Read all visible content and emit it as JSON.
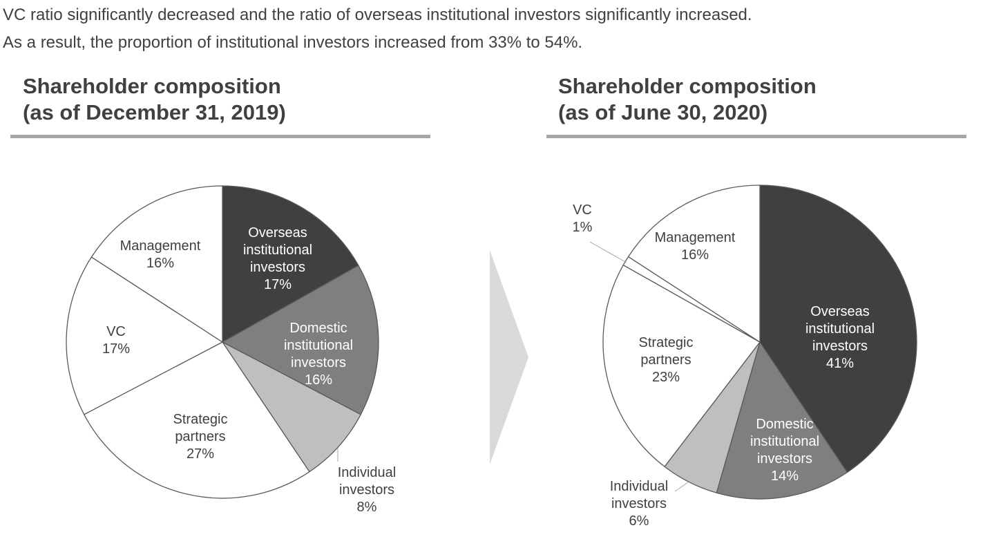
{
  "intro": {
    "line1": "VC ratio significantly decreased and the ratio of overseas institutional investors significantly increased.",
    "line2": "As a result, the proportion of institutional investors increased from 33% to 54%."
  },
  "colors": {
    "overseas": "#404040",
    "domestic": "#7f7f7f",
    "individual": "#bfbfbf",
    "white_slice": "#ffffff",
    "stroke": "#595959",
    "rule": "#a6a6a6",
    "arrow": "#d9d9d9"
  },
  "chart_data": [
    {
      "type": "pie",
      "title_line1": "Shareholder composition",
      "title_line2": "(as of December 31, 2019)",
      "slices": [
        {
          "label_lines": [
            "Overseas",
            "institutional",
            "investors",
            "17%"
          ],
          "value": 17,
          "color": "#404040",
          "text_color": "#ffffff"
        },
        {
          "label_lines": [
            "Domestic",
            "institutional",
            "investors",
            "16%"
          ],
          "value": 16,
          "color": "#7f7f7f",
          "text_color": "#ffffff"
        },
        {
          "label_lines": [
            "Individual",
            "investors",
            "8%"
          ],
          "value": 8,
          "color": "#bfbfbf",
          "text_color": "#3f3f3f"
        },
        {
          "label_lines": [
            "Strategic",
            "partners",
            "27%"
          ],
          "value": 27,
          "color": "#ffffff",
          "text_color": "#3f3f3f"
        },
        {
          "label_lines": [
            "VC",
            "17%"
          ],
          "value": 17,
          "color": "#ffffff",
          "text_color": "#3f3f3f"
        },
        {
          "label_lines": [
            "Management",
            "16%"
          ],
          "value": 16,
          "color": "#ffffff",
          "text_color": "#3f3f3f"
        }
      ]
    },
    {
      "type": "pie",
      "title_line1": "Shareholder composition",
      "title_line2": "(as of June 30, 2020)",
      "slices": [
        {
          "label_lines": [
            "Overseas",
            "institutional",
            "investors",
            "41%"
          ],
          "value": 41,
          "color": "#404040",
          "text_color": "#ffffff"
        },
        {
          "label_lines": [
            "Domestic",
            "institutional",
            "investors",
            "14%"
          ],
          "value": 14,
          "color": "#7f7f7f",
          "text_color": "#ffffff"
        },
        {
          "label_lines": [
            "Individual",
            "investors",
            "6%"
          ],
          "value": 6,
          "color": "#bfbfbf",
          "text_color": "#3f3f3f"
        },
        {
          "label_lines": [
            "Strategic",
            "partners",
            "23%"
          ],
          "value": 23,
          "color": "#ffffff",
          "text_color": "#3f3f3f"
        },
        {
          "label_lines": [
            "VC",
            "1%"
          ],
          "value": 1,
          "color": "#ffffff",
          "text_color": "#3f3f3f"
        },
        {
          "label_lines": [
            "Management",
            "16%"
          ],
          "value": 16,
          "color": "#ffffff",
          "text_color": "#3f3f3f"
        }
      ]
    }
  ]
}
